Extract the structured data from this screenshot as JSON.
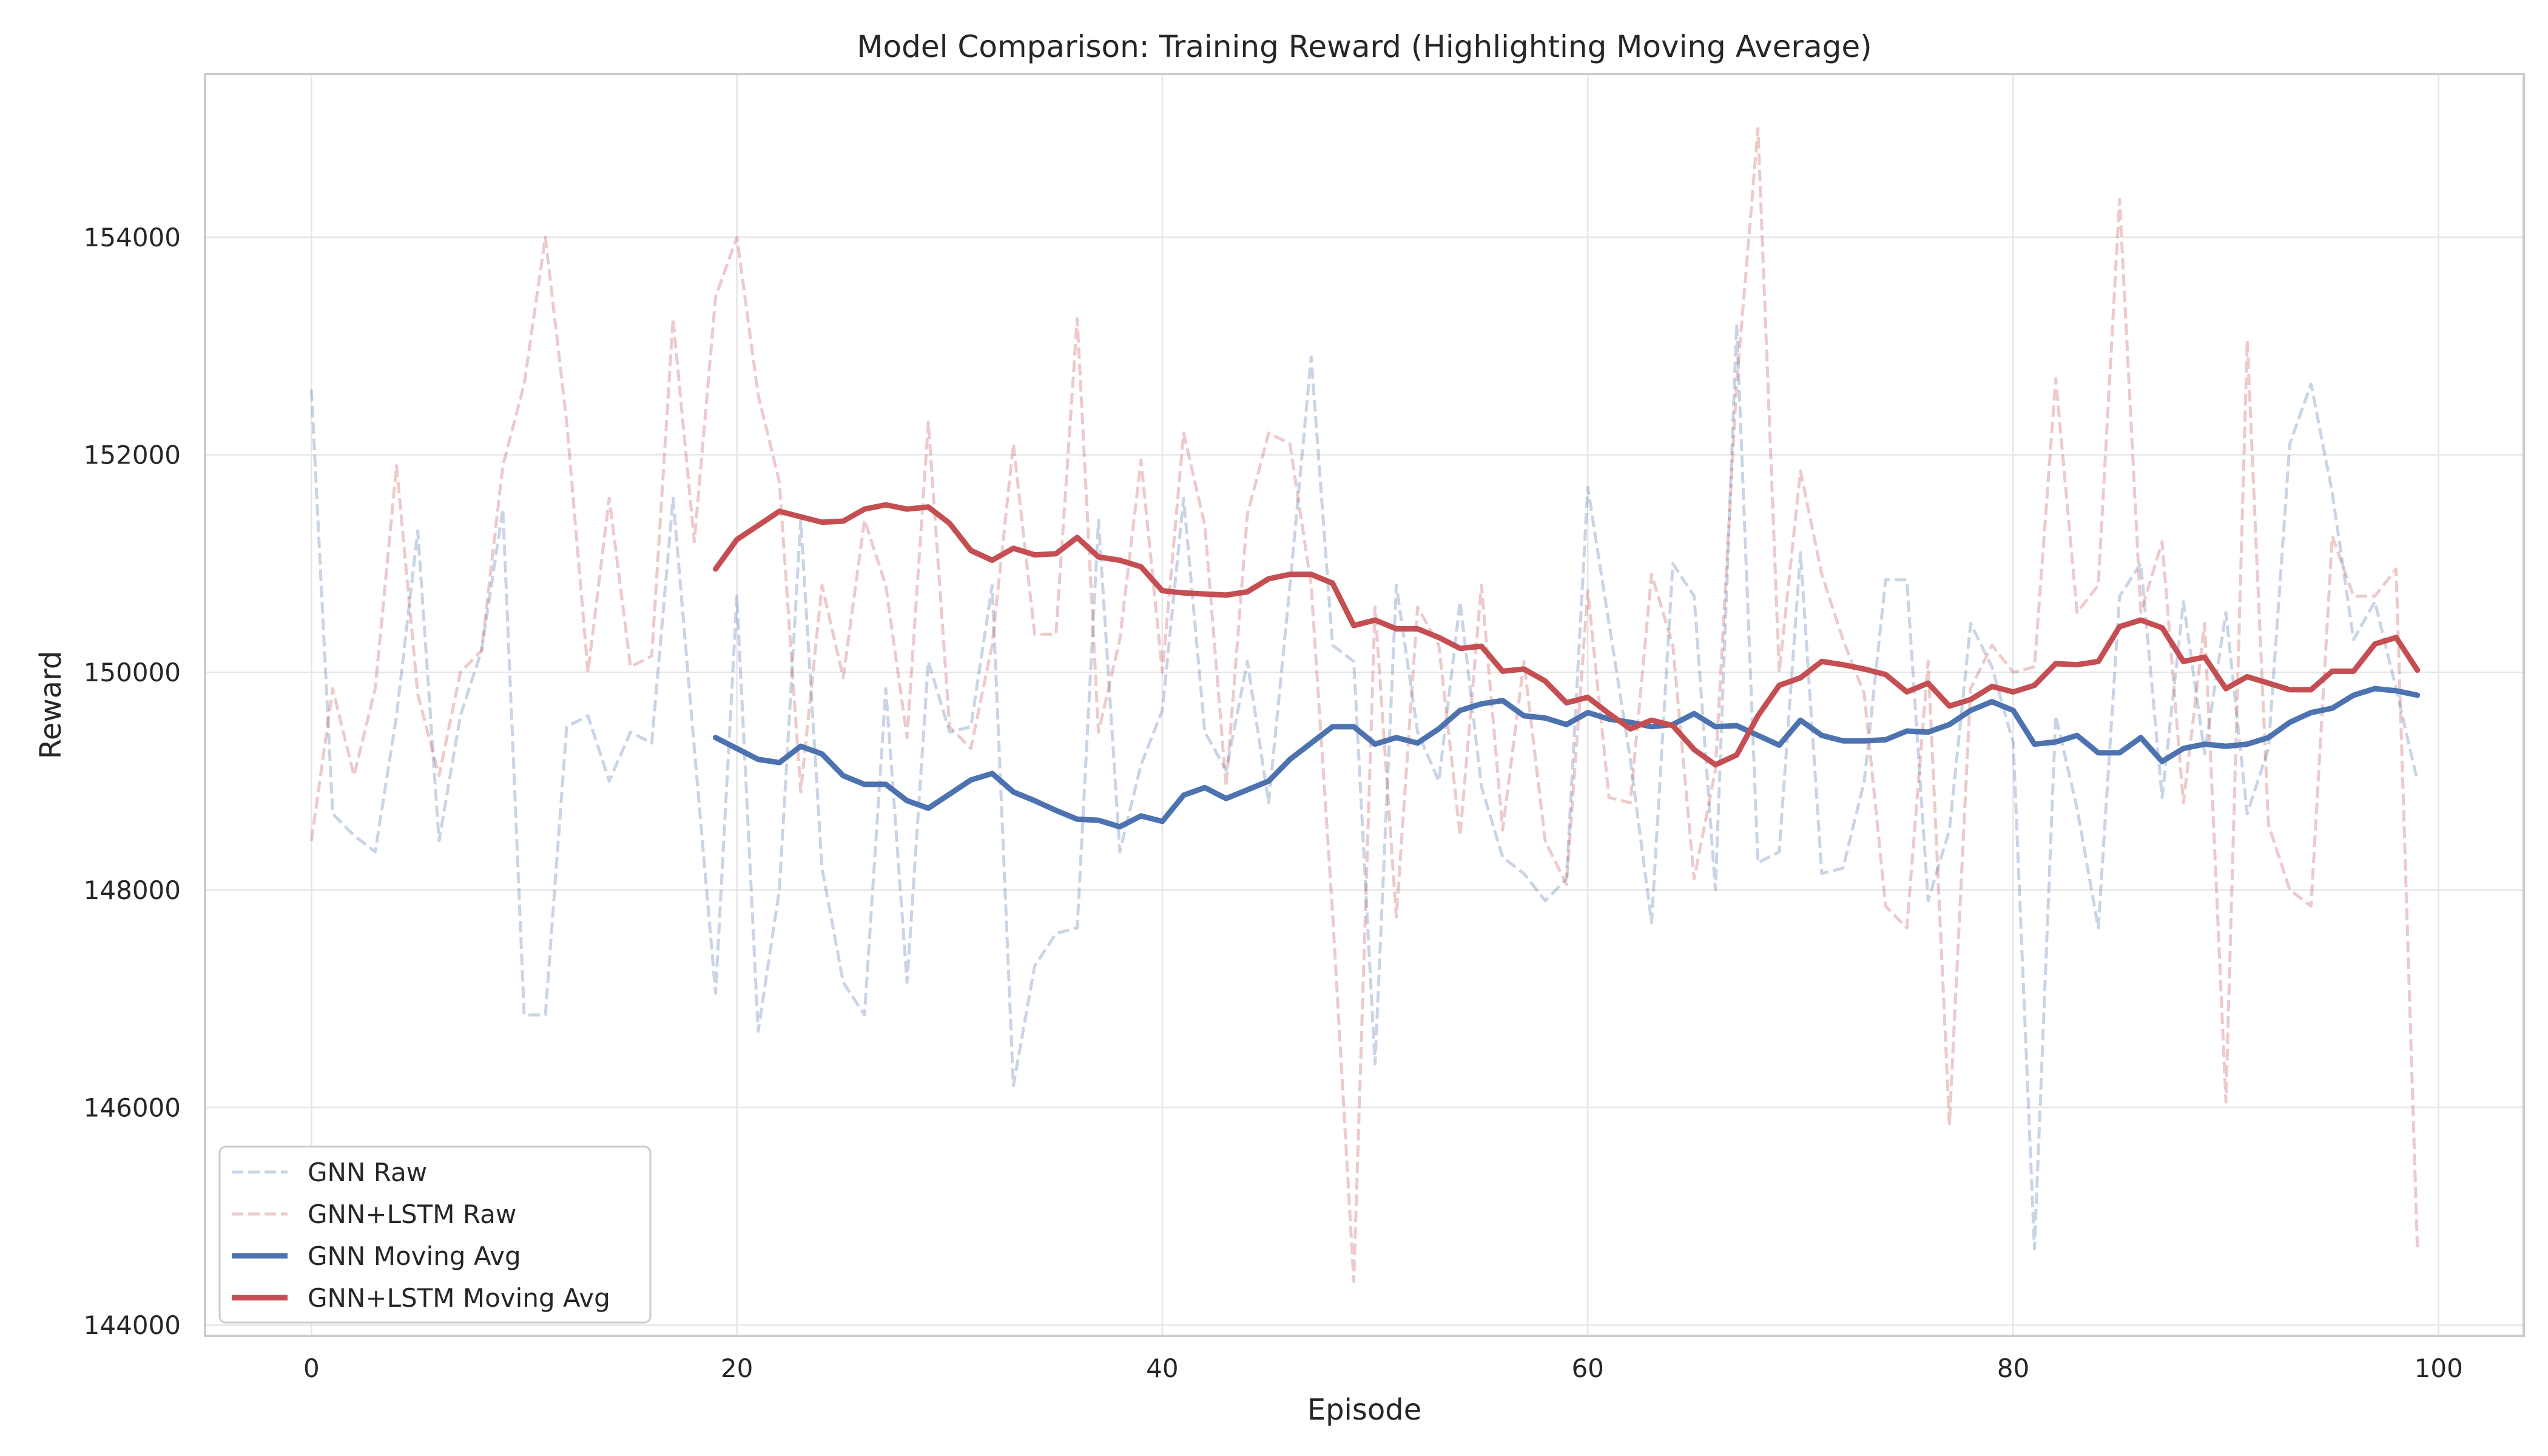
{
  "chart_data": {
    "type": "line",
    "title": "Model Comparison: Training Reward (Highlighting Moving Average)",
    "xlabel": "Episode",
    "ylabel": "Reward",
    "xlim": [
      -5,
      104
    ],
    "ylim": [
      143900,
      155500
    ],
    "xticks": [
      0,
      20,
      40,
      60,
      80,
      100
    ],
    "yticks": [
      144000,
      146000,
      148000,
      150000,
      152000,
      154000
    ],
    "grid": true,
    "legend_position": "lower-left",
    "series": [
      {
        "name": "GNN Raw",
        "color": "#4c72b0",
        "style": "dashed",
        "opacity": 0.3,
        "x_start": 0,
        "values": [
          152600,
          148700,
          148500,
          148350,
          149600,
          151300,
          148450,
          149600,
          150200,
          151500,
          146850,
          146850,
          149500,
          149600,
          149000,
          149450,
          149350,
          151600,
          149300,
          147050,
          150700,
          146700,
          148000,
          151400,
          148200,
          147150,
          146850,
          149850,
          147150,
          150100,
          149450,
          149500,
          150800,
          146200,
          147300,
          147600,
          147650,
          151400,
          148350,
          149150,
          149650,
          151600,
          149450,
          149100,
          150100,
          148800,
          150800,
          152900,
          150250,
          150100,
          146400,
          150800,
          149450,
          149000,
          150650,
          148950,
          148300,
          148150,
          147900,
          148100,
          151700,
          150450,
          149200,
          147700,
          151000,
          150700,
          148000,
          153200,
          148250,
          148350,
          151100,
          148150,
          148200,
          149000,
          150850,
          150850,
          147900,
          148550,
          150450,
          150050,
          149350,
          144700,
          149600,
          148750,
          147650,
          150700,
          151000,
          148850,
          150650,
          149250,
          150550,
          148700,
          149300,
          152100,
          152650,
          151650,
          150300,
          150650,
          149850,
          149000
        ]
      },
      {
        "name": "GNN+LSTM Raw",
        "color": "#c44e52",
        "style": "dashed",
        "opacity": 0.3,
        "x_start": 0,
        "values": [
          148450,
          149850,
          149050,
          149850,
          151900,
          149800,
          149050,
          150000,
          150200,
          151900,
          152650,
          154000,
          152300,
          150000,
          151600,
          150050,
          150150,
          153250,
          151200,
          153450,
          154000,
          152550,
          151750,
          148900,
          150800,
          149950,
          151400,
          150800,
          149400,
          152300,
          149500,
          149300,
          150250,
          152100,
          150350,
          150350,
          153250,
          149450,
          150300,
          151950,
          150000,
          152200,
          151350,
          148950,
          151450,
          152200,
          152100,
          150800,
          147800,
          144400,
          150600,
          147750,
          150600,
          150250,
          148500,
          150800,
          148550,
          150100,
          148450,
          148050,
          150750,
          148850,
          148800,
          150900,
          150250,
          148100,
          149100,
          152650,
          155000,
          150000,
          151850,
          150900,
          150300,
          149800,
          147850,
          147650,
          150100,
          145850,
          149850,
          150250,
          150000,
          150050,
          152700,
          150550,
          150800,
          154350,
          150550,
          151200,
          148800,
          150450,
          146050,
          153050,
          148600,
          148000,
          147850,
          151250,
          150700,
          150700,
          150950,
          144700
        ]
      },
      {
        "name": "GNN Moving Avg",
        "color": "#4c72b0",
        "style": "solid",
        "opacity": 1,
        "x_start": 19,
        "values": [
          149400,
          149300,
          149200,
          149170,
          149320,
          149250,
          149050,
          148970,
          148970,
          148820,
          148750,
          148880,
          149010,
          149070,
          148900,
          148820,
          148730,
          148650,
          148640,
          148580,
          148680,
          148630,
          148870,
          148940,
          148840,
          148920,
          149000,
          149200,
          149350,
          149500,
          149500,
          149340,
          149400,
          149350,
          149480,
          149650,
          149710,
          149740,
          149600,
          149580,
          149520,
          149630,
          149570,
          149540,
          149500,
          149520,
          149620,
          149500,
          149510,
          149420,
          149330,
          149560,
          149420,
          149370,
          149370,
          149380,
          149460,
          149450,
          149520,
          149650,
          149730,
          149650,
          149340,
          149360,
          149420,
          149260,
          149260,
          149400,
          149180,
          149300,
          149340,
          149320,
          149340,
          149400,
          149540,
          149630,
          149670,
          149790,
          149850,
          149830,
          149790
        ]
      },
      {
        "name": "GNN+LSTM Moving Avg",
        "color": "#c44e52",
        "style": "solid",
        "opacity": 1,
        "x_start": 19,
        "values": [
          150950,
          151220,
          151350,
          151480,
          151430,
          151380,
          151390,
          151500,
          151540,
          151500,
          151520,
          151370,
          151120,
          151030,
          151140,
          151080,
          151090,
          151240,
          151060,
          151030,
          150970,
          150750,
          150730,
          150720,
          150710,
          150740,
          150860,
          150900,
          150900,
          150820,
          150430,
          150480,
          150400,
          150400,
          150320,
          150220,
          150240,
          150010,
          150030,
          149920,
          149720,
          149770,
          149620,
          149480,
          149560,
          149510,
          149290,
          149150,
          149240,
          149600,
          149880,
          149950,
          150100,
          150070,
          150030,
          149980,
          149820,
          149900,
          149690,
          149750,
          149870,
          149820,
          149880,
          150080,
          150070,
          150100,
          150420,
          150480,
          150410,
          150100,
          150140,
          149850,
          149960,
          149900,
          149840,
          149840,
          150010,
          150010,
          150260,
          150320,
          150020
        ]
      }
    ]
  }
}
